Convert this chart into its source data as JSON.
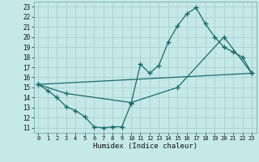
{
  "xlabel": "Humidex (Indice chaleur)",
  "bg_color": "#c5e8e8",
  "grid_color": "#aed4d4",
  "line_color": "#1a6b6b",
  "xlim": [
    -0.5,
    23.5
  ],
  "ylim": [
    10.5,
    23.5
  ],
  "xticks": [
    0,
    1,
    2,
    3,
    4,
    5,
    6,
    7,
    8,
    9,
    10,
    11,
    12,
    13,
    14,
    15,
    16,
    17,
    18,
    19,
    20,
    21,
    22,
    23
  ],
  "yticks": [
    11,
    12,
    13,
    14,
    15,
    16,
    17,
    18,
    19,
    20,
    21,
    22,
    23
  ],
  "line1_x": [
    0,
    1,
    2,
    3,
    4,
    5,
    6,
    7,
    8,
    9,
    10,
    11,
    12,
    13,
    14,
    15,
    16,
    17,
    18,
    19,
    20,
    21,
    22,
    23
  ],
  "line1_y": [
    15.3,
    14.7,
    14.0,
    13.1,
    12.7,
    12.1,
    11.1,
    11.0,
    11.1,
    11.1,
    13.4,
    17.3,
    16.4,
    17.2,
    19.5,
    21.1,
    22.3,
    22.9,
    21.3,
    20.0,
    19.0,
    18.5,
    18.0,
    16.4
  ],
  "line2_x": [
    0,
    3,
    10,
    15,
    20,
    23
  ],
  "line2_y": [
    15.3,
    14.4,
    13.5,
    15.0,
    20.0,
    16.4
  ],
  "line3_x": [
    0,
    23
  ],
  "line3_y": [
    15.3,
    16.4
  ]
}
